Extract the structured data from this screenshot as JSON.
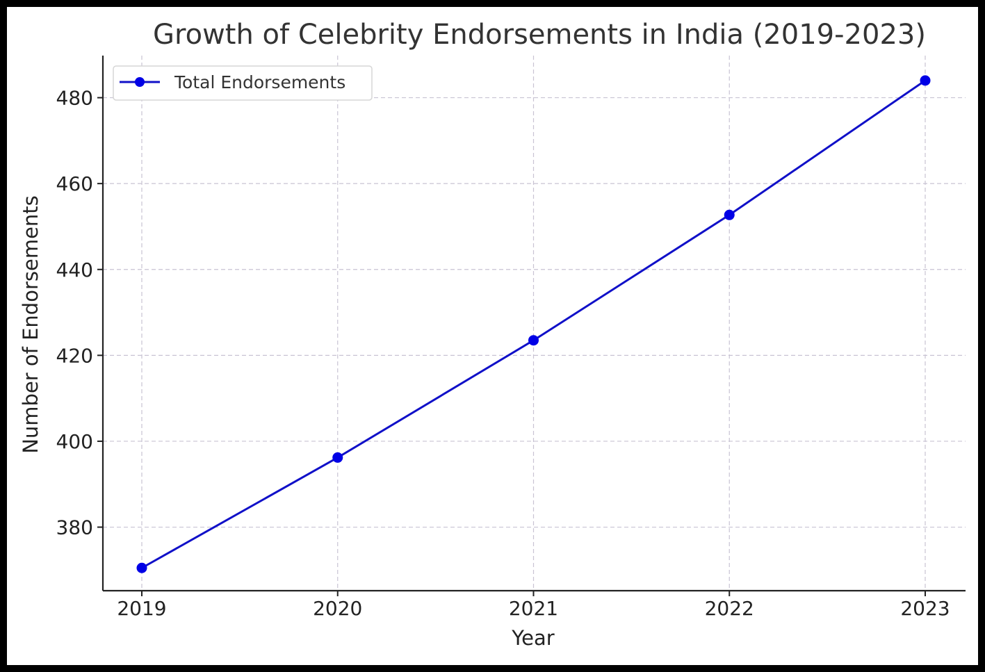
{
  "chart_data": {
    "type": "line",
    "title": "Growth of Celebrity Endorsements in India (2019-2023)",
    "xlabel": "Year",
    "ylabel": "Number of Endorsements",
    "categories": [
      "2019",
      "2020",
      "2021",
      "2022",
      "2023"
    ],
    "series": [
      {
        "name": "Total Endorsements",
        "values": [
          370.5,
          396.2,
          423.5,
          452.7,
          484.0
        ],
        "color": "#0000e6",
        "line_color": "#1010c8",
        "marker": "circle"
      }
    ],
    "yticks": [
      380,
      400,
      420,
      440,
      460,
      480
    ],
    "ylim": [
      365.2,
      489.8
    ],
    "grid": true,
    "legend_position": "top-left"
  }
}
